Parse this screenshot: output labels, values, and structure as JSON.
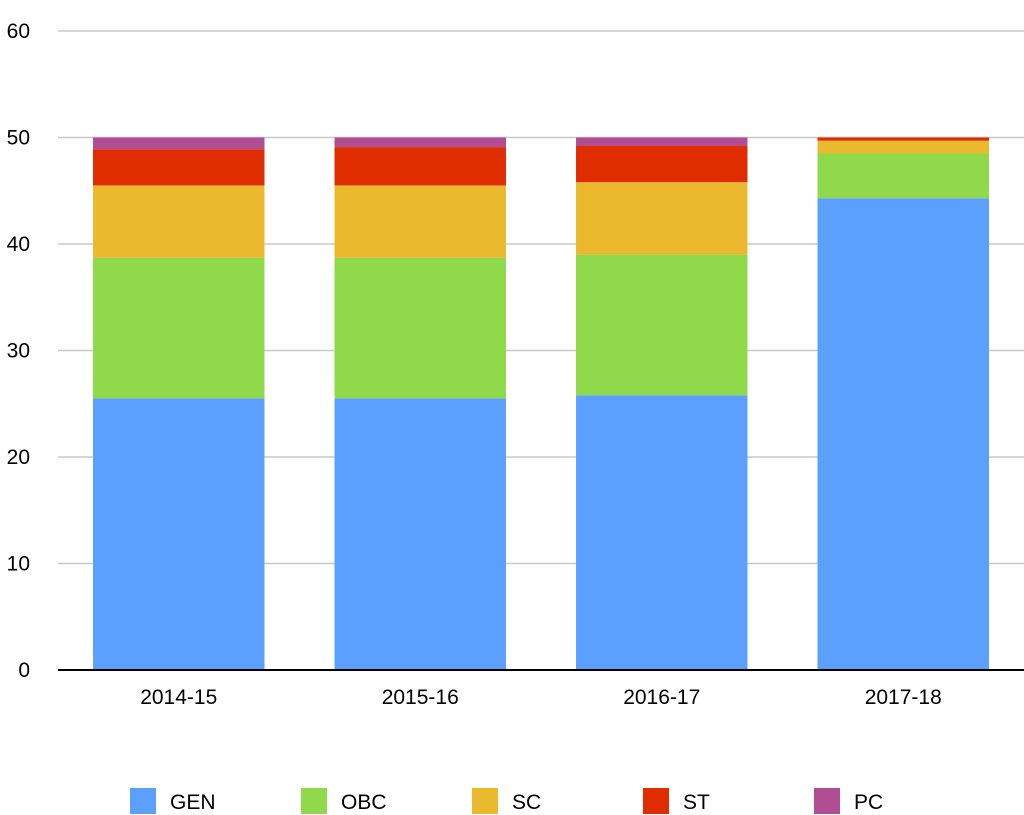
{
  "chart_data": {
    "type": "bar",
    "stacked": true,
    "title": "",
    "xlabel": "",
    "ylabel": "",
    "categories": [
      "2014-15",
      "2015-16",
      "2016-17",
      "2017-18"
    ],
    "ylim": [
      0,
      60
    ],
    "yticks": [
      "0",
      "10",
      "20",
      "30",
      "40",
      "50",
      "60"
    ],
    "grid": true,
    "legend_position": "bottom",
    "series": [
      {
        "name": "GEN",
        "color": "#5ba0fe",
        "values": [
          25.5,
          25.5,
          25.8,
          44.3
        ]
      },
      {
        "name": "OBC",
        "color": "#8fd94a",
        "values": [
          13.2,
          13.2,
          13.2,
          4.2
        ]
      },
      {
        "name": "SC",
        "color": "#ebb92e",
        "values": [
          6.8,
          6.8,
          6.8,
          1.2
        ]
      },
      {
        "name": "ST",
        "color": "#df2d00",
        "values": [
          3.4,
          3.6,
          3.4,
          0.3
        ]
      },
      {
        "name": "PC",
        "color": "#b14d92",
        "values": [
          1.1,
          0.9,
          0.8,
          0.0
        ]
      }
    ]
  }
}
